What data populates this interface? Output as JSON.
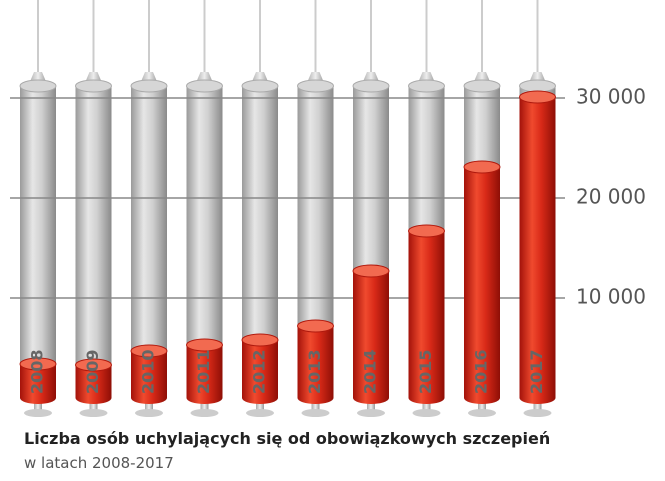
{
  "chart_data": {
    "type": "bar",
    "title": "Liczba osób uchylających się od obowiązkowych szczepień",
    "subtitle": "w latach 2008-2017",
    "categories": [
      "2008",
      "2009",
      "2010",
      "2011",
      "2012",
      "2013",
      "2014",
      "2015",
      "2016",
      "2017"
    ],
    "values": [
      3400,
      3300,
      4700,
      5300,
      5800,
      7200,
      12700,
      16700,
      23100,
      30100
    ],
    "color": "#d92a18",
    "ylim": [
      0,
      30000
    ],
    "yticks": [
      {
        "value": 10000,
        "label": "10 000"
      },
      {
        "value": 20000,
        "label": "20 000"
      },
      {
        "value": 30000,
        "label": "30 000"
      }
    ],
    "grid": true
  }
}
